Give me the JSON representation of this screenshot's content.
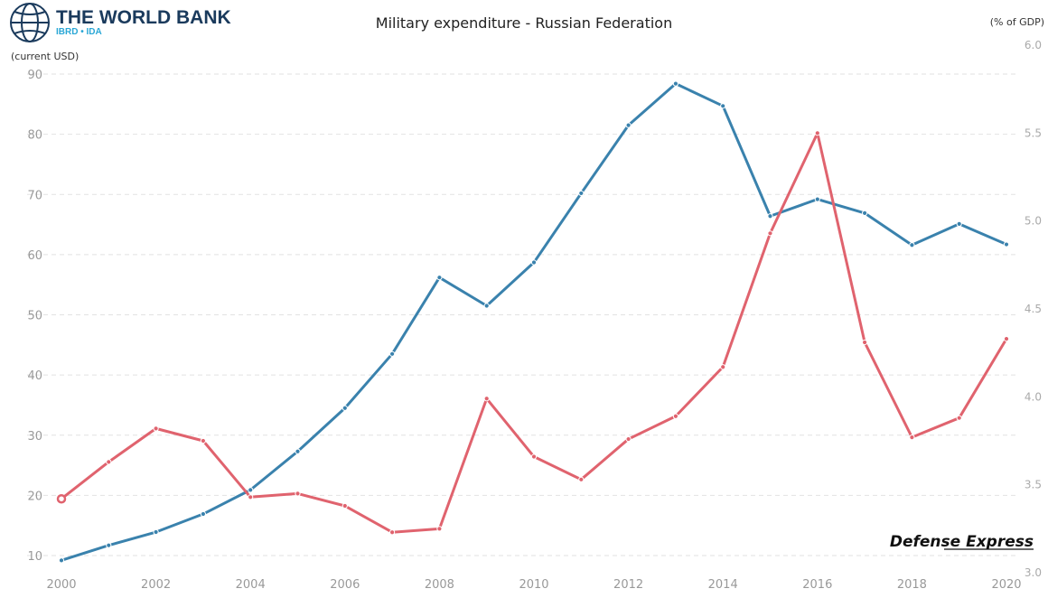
{
  "brand": {
    "name": "THE WORLD BANK",
    "subtitle": "IBRD • IDA",
    "logo_icon": "globe-icon",
    "color_primary": "#1a3a5c",
    "color_accent": "#2aa7d6"
  },
  "watermark": "Defense Express",
  "chart_data": {
    "type": "line",
    "title": "Military expenditure - Russian Federation",
    "ylabel_left": "(current USD)",
    "ylabel_right": "(% of GDP)",
    "xlabel": "",
    "x": [
      2000,
      2001,
      2002,
      2003,
      2004,
      2005,
      2006,
      2007,
      2008,
      2009,
      2010,
      2011,
      2012,
      2013,
      2014,
      2015,
      2016,
      2017,
      2018,
      2019,
      2020
    ],
    "x_ticks": [
      "2000",
      "2002",
      "2004",
      "2006",
      "2008",
      "2010",
      "2012",
      "2014",
      "2016",
      "2018",
      "2020"
    ],
    "ylim_left": [
      10,
      90
    ],
    "y_ticks_left": [
      "10",
      "20",
      "30",
      "40",
      "50",
      "60",
      "70",
      "80",
      "90"
    ],
    "ylim_right": [
      3.0,
      6.0
    ],
    "y_ticks_right": [
      "3.0",
      "3.5",
      "4.0",
      "4.5",
      "5.0",
      "5.5",
      "6.0"
    ],
    "grid": true,
    "legend": "none",
    "series": [
      {
        "axis": "left",
        "color": "#3a82ad",
        "values": [
          9.2,
          11.7,
          13.9,
          16.9,
          20.9,
          27.3,
          34.5,
          43.5,
          56.2,
          51.5,
          58.7,
          70.2,
          81.5,
          88.4,
          84.7,
          66.4,
          69.2,
          66.9,
          61.6,
          65.1,
          61.7
        ]
      },
      {
        "axis": "right",
        "color": "#e0636e",
        "values": [
          3.42,
          3.63,
          3.82,
          3.75,
          3.43,
          3.45,
          3.38,
          3.23,
          3.25,
          3.99,
          3.66,
          3.53,
          3.76,
          3.89,
          4.17,
          4.93,
          5.5,
          4.31,
          3.77,
          3.88,
          4.33
        ]
      }
    ]
  }
}
